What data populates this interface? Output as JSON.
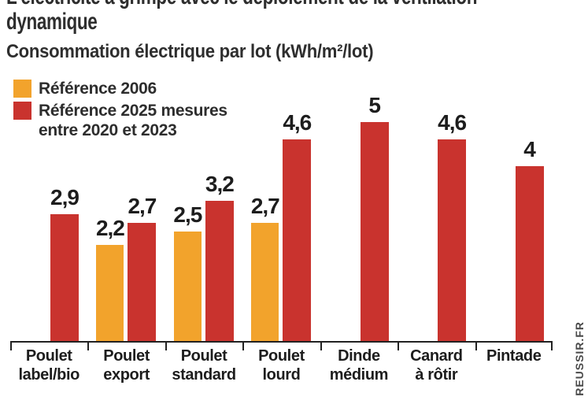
{
  "title": {
    "line1": "L'électricité a grimpé avec le déploiement de la ventilation",
    "line2": "dynamique"
  },
  "subtitle": "Consommation électrique par lot  (kWh/m²/lot)",
  "legend": {
    "items": [
      {
        "color": "#F2A32C",
        "lines": [
          "Référence 2006"
        ]
      },
      {
        "color": "#C9332E",
        "lines": [
          "Référence 2025 mesures",
          "entre 2020 et 2023"
        ]
      }
    ]
  },
  "source": "REUSSIR.FR",
  "chart_data": {
    "type": "bar",
    "title": "Consommation électrique par lot (kWh/m²/lot)",
    "categories": [
      "Poulet label/bio",
      "Poulet export",
      "Poulet standard",
      "Poulet lourd",
      "Dinde médium",
      "Canard à rôtir",
      "Pintade"
    ],
    "category_lines": [
      [
        "Poulet",
        "label/bio"
      ],
      [
        "Poulet",
        "export"
      ],
      [
        "Poulet",
        "standard"
      ],
      [
        "Poulet",
        "lourd"
      ],
      [
        "Dinde",
        "médium"
      ],
      [
        "Canard",
        "à rôtir"
      ],
      [
        "Pintade"
      ]
    ],
    "series": [
      {
        "name": "Référence 2006",
        "color": "#F2A32C",
        "values": [
          null,
          2.2,
          2.5,
          2.7,
          null,
          null,
          null
        ]
      },
      {
        "name": "Référence 2025 mesures entre 2020 et 2023",
        "color": "#C9332E",
        "values": [
          2.9,
          2.7,
          3.2,
          4.6,
          5,
          4.6,
          4
        ]
      }
    ],
    "value_labels": [
      [
        "",
        "2,2",
        "2,5",
        "2,7",
        "",
        "",
        ""
      ],
      [
        "2,9",
        "2,7",
        "3,2",
        "4,6",
        "5",
        "4,6",
        "4"
      ]
    ],
    "xlabel": "",
    "ylabel": "",
    "ylim": [
      0,
      5.1
    ],
    "grid": false,
    "legend_position": "top-left"
  }
}
